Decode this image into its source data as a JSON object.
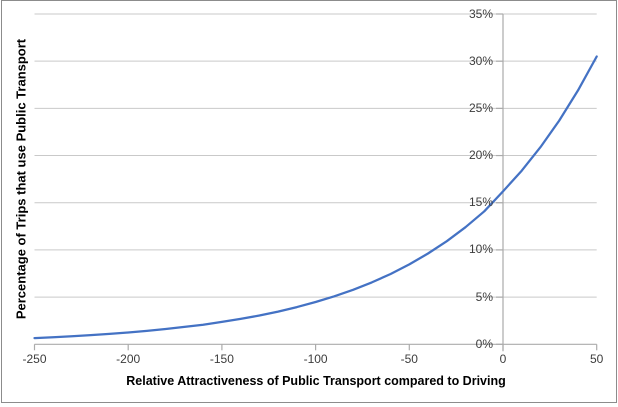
{
  "window": {
    "background": "#ffffff",
    "frame_border_color": "#8c8c8c"
  },
  "chart_data": {
    "type": "line",
    "title": "",
    "xlabel": "Relative Attractiveness of Public Transport compared to Driving",
    "ylabel": "Percentage of Trips that use Public Transport",
    "xlim": [
      -250,
      50
    ],
    "ylim": [
      0,
      35
    ],
    "x_ticks": [
      -250,
      -200,
      -150,
      -100,
      -50,
      0,
      50
    ],
    "x_tick_labels": [
      "-250",
      "-200",
      "-150",
      "-100",
      "-50",
      "0",
      "50"
    ],
    "y_ticks": [
      0,
      5,
      10,
      15,
      20,
      25,
      30,
      35
    ],
    "y_tick_labels": [
      "0%",
      "5%",
      "10%",
      "15%",
      "20%",
      "25%",
      "30%",
      "35%"
    ],
    "grid": "horizontal",
    "legend": "none",
    "value_axis_cross_x": 0,
    "series": [
      {
        "color": "#4472C4",
        "x": [
          -250,
          -240,
          -230,
          -220,
          -210,
          -200,
          -190,
          -180,
          -170,
          -160,
          -150,
          -140,
          -130,
          -120,
          -110,
          -100,
          -90,
          -80,
          -70,
          -60,
          -50,
          -40,
          -30,
          -20,
          -10,
          0,
          10,
          20,
          30,
          40,
          50
        ],
        "y": [
          0.66,
          0.75,
          0.85,
          0.97,
          1.1,
          1.25,
          1.42,
          1.62,
          1.84,
          2.08,
          2.37,
          2.69,
          3.05,
          3.47,
          3.94,
          4.48,
          5.09,
          5.78,
          6.56,
          7.45,
          8.47,
          9.62,
          10.92,
          12.41,
          14.09,
          16.2,
          18.4,
          20.9,
          23.7,
          26.9,
          30.5
        ]
      }
    ],
    "colors": {
      "gridline": "#c9c9c9",
      "axis_line": "#ababab",
      "tick_label": "#3d3d3d",
      "axis_title": "#000000",
      "series_line": "#4472C4"
    }
  }
}
